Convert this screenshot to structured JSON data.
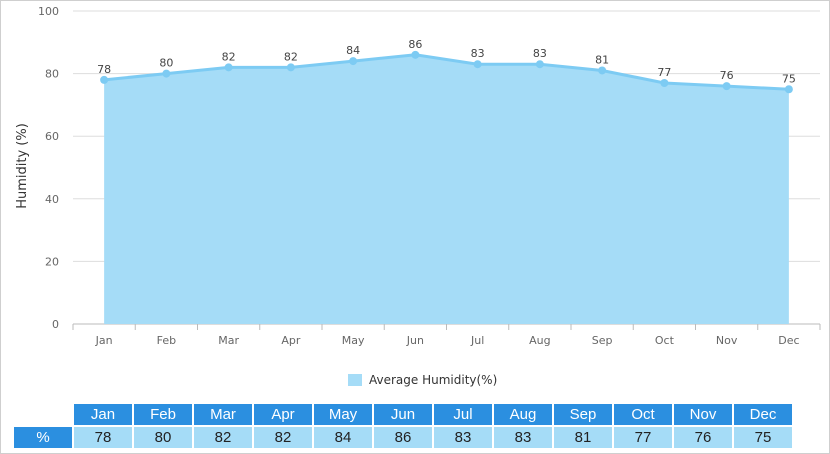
{
  "chart_data": {
    "type": "area",
    "categories": [
      "Jan",
      "Feb",
      "Mar",
      "Apr",
      "May",
      "Jun",
      "Jul",
      "Aug",
      "Sep",
      "Oct",
      "Nov",
      "Dec"
    ],
    "series": [
      {
        "name": "Average Humidity(%)",
        "values": [
          78,
          80,
          82,
          82,
          84,
          86,
          83,
          83,
          81,
          77,
          76,
          75
        ]
      }
    ],
    "ylabel": "Humidity (%)",
    "ylim": [
      0,
      100
    ],
    "yticks": [
      0,
      20,
      40,
      60,
      80,
      100
    ],
    "grid": true,
    "legend": "bottom-center"
  },
  "colors": {
    "area_fill": "#a5dcf7",
    "line": "#7dcbf3",
    "table_header": "#2b8fe0",
    "table_cell": "#a5dcf7",
    "grid": "#dddddd"
  },
  "table": {
    "row_label": "%"
  }
}
